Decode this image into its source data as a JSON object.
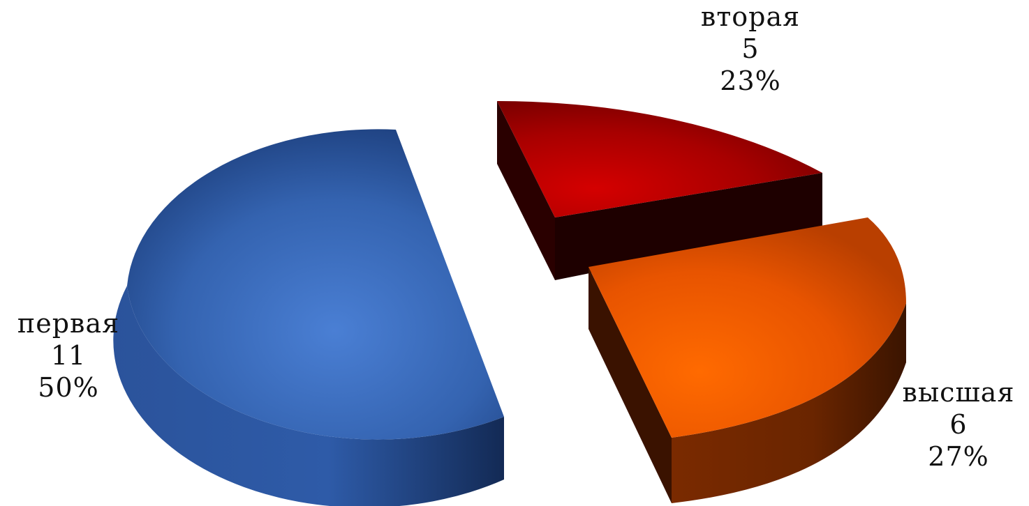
{
  "chart_data": {
    "type": "pie",
    "categories": [
      "первая",
      "вторая",
      "высшая"
    ],
    "values": [
      11,
      5,
      6
    ],
    "percents": [
      "50%",
      "23%",
      "27%"
    ],
    "labels": [
      {
        "category": "первая",
        "value": "11",
        "percent": "50%"
      },
      {
        "category": "вторая",
        "value": "5",
        "percent": "23%"
      },
      {
        "category": "высшая",
        "value": "6",
        "percent": "27%"
      }
    ],
    "colors": [
      "#2f5ea8",
      "#b30000",
      "#ef5a00"
    ],
    "exploded": true,
    "style": "3d"
  }
}
